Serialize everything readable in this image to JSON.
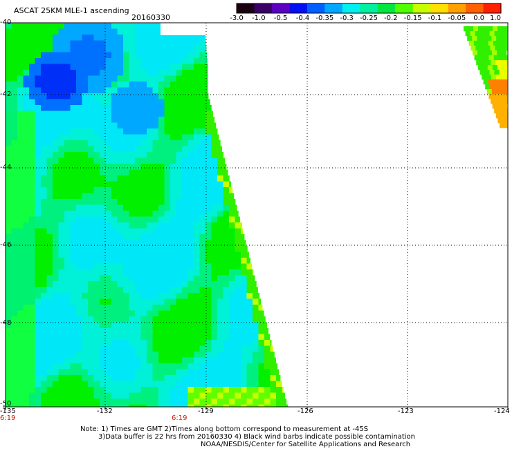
{
  "header": {
    "title": "ASCAT 25KM MLE-1 ascending",
    "date": "20160330"
  },
  "colorbar": {
    "labels": [
      "-3.0",
      "-1.0",
      "-0.5",
      "-0.4",
      "-0.35",
      "-0.3",
      "-0.25",
      "-0.2",
      "-0.15",
      "-0.1",
      "-0.05",
      "0.0",
      "1.0"
    ],
    "colors": [
      "#1a0010",
      "#3a0066",
      "#5a00c0",
      "#0010f0",
      "#0060ff",
      "#00a8ff",
      "#00f0f0",
      "#00f0a0",
      "#00e840",
      "#50ff00",
      "#c8ff00",
      "#ffe000",
      "#ffa000",
      "#ff6000",
      "#ff2000"
    ]
  },
  "map": {
    "lon_labels": [
      "-135",
      "-132",
      "-129",
      "-126",
      "-123",
      "-124"
    ],
    "lat_labels": [
      "-40",
      "-42",
      "-44",
      "-46",
      "-48",
      "-50"
    ],
    "time_labels": [
      "6:19",
      "6:19"
    ],
    "accent_time_color": "#cc2200"
  },
  "footer": {
    "line1": "Note: 1) Times are GMT 2)Times along bottom correspond to measurement at -45S",
    "line2": "3)Data buffer is 22 hrs from 20160330 4) Black wind barbs indicate possible contamination",
    "line3": "NOAA/NESDIS/Center for Satellite Applications and Research"
  }
}
